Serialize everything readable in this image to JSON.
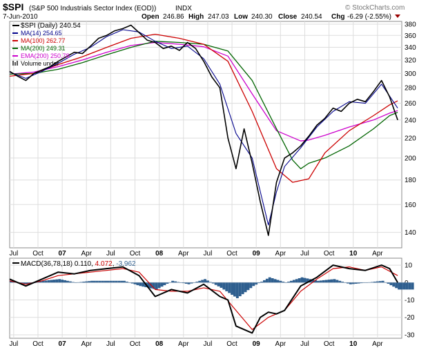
{
  "header": {
    "symbol": "$SPI",
    "name": "(S&P 500 Industrials Sector Index (EOD))",
    "exchange": "INDX",
    "watermark": "© StockCharts.com",
    "date": "7-Jun-2010",
    "open_label": "Open",
    "open": "246.86",
    "high_label": "High",
    "high": "247.03",
    "low_label": "Low",
    "low": "240.30",
    "close_label": "Close",
    "close": "240.54",
    "chg_label": "Chg",
    "chg": "-6.29 (-2.55%)"
  },
  "chart_data": [
    {
      "type": "line",
      "title": "$SPI (S&P 500 Industrials Sector Index (EOD)) INDX",
      "ylabel": "",
      "xlabel": "",
      "y_scale": "log",
      "ylim": [
        130,
        385
      ],
      "y_ticks": [
        140,
        160,
        180,
        200,
        220,
        240,
        260,
        280,
        300,
        320,
        340,
        360,
        380
      ],
      "x_tick_labels": [
        "Jul",
        "Oct",
        "07",
        "Apr",
        "Jul",
        "Oct",
        "08",
        "Apr",
        "Jul",
        "Oct",
        "09",
        "Apr",
        "Jul",
        "Oct",
        "10",
        "Apr"
      ],
      "x_tick_positions": [
        0.5,
        3.5,
        6.5,
        9.5,
        12.5,
        15.5,
        18.5,
        21.5,
        24.5,
        27.5,
        30.5,
        33.5,
        36.5,
        39.5,
        42.5,
        45.5
      ],
      "legend_position": "top-left",
      "grid": true,
      "legend": [
        {
          "label": "$SPI (Daily) 240.54",
          "color": "#000000"
        },
        {
          "label": "MA(14) 254.65",
          "color": "#00008b"
        },
        {
          "label": "MA(100) 262.77",
          "color": "#cc0000"
        },
        {
          "label": "MA(200) 249.31",
          "color": "#006400"
        },
        {
          "label": "EMA(200) 250.78",
          "color": "#cc00cc"
        },
        {
          "label": "Volume undef",
          "color": "#555555"
        }
      ],
      "series": [
        {
          "name": "$SPI (Daily)",
          "color": "#000000",
          "x": [
            0,
            1,
            2,
            3,
            4,
            5,
            6,
            7,
            8,
            9,
            10,
            11,
            12,
            13,
            14,
            15,
            16,
            17,
            18,
            19,
            20,
            21,
            22,
            23,
            24,
            25,
            26,
            27,
            28,
            29,
            30,
            31,
            32,
            33,
            34,
            35,
            36,
            37,
            38,
            39,
            40,
            41,
            42,
            43,
            44,
            45,
            46,
            47,
            48
          ],
          "y": [
            303,
            296,
            290,
            300,
            305,
            310,
            318,
            325,
            332,
            330,
            342,
            355,
            360,
            368,
            372,
            378,
            365,
            352,
            348,
            338,
            342,
            335,
            348,
            338,
            318,
            295,
            280,
            220,
            190,
            230,
            195,
            162,
            138,
            178,
            200,
            205,
            212,
            222,
            234,
            242,
            254,
            250,
            260,
            265,
            262,
            275,
            290,
            268,
            240
          ]
        },
        {
          "name": "MA(14)",
          "color": "#00008b",
          "x": [
            0,
            2,
            4,
            6,
            8,
            10,
            12,
            14,
            16,
            18,
            20,
            22,
            24,
            26,
            28,
            30,
            32,
            33,
            34,
            36,
            38,
            40,
            42,
            44,
            46,
            48
          ],
          "y": [
            302,
            293,
            303,
            315,
            329,
            340,
            358,
            370,
            366,
            350,
            338,
            342,
            322,
            285,
            225,
            200,
            145,
            170,
            192,
            210,
            232,
            250,
            262,
            260,
            285,
            254
          ]
        },
        {
          "name": "MA(100)",
          "color": "#cc0000",
          "x": [
            0,
            3,
            6,
            9,
            12,
            15,
            18,
            21,
            24,
            27,
            30,
            33,
            35,
            37,
            39,
            42,
            45,
            47,
            48
          ],
          "y": [
            296,
            300,
            313,
            325,
            340,
            355,
            362,
            355,
            345,
            318,
            250,
            190,
            178,
            181,
            205,
            228,
            245,
            258,
            263
          ]
        },
        {
          "name": "MA(200)",
          "color": "#006400",
          "x": [
            0,
            3,
            6,
            9,
            12,
            15,
            18,
            21,
            24,
            27,
            30,
            33,
            35,
            36,
            37,
            39,
            42,
            45,
            47,
            48
          ],
          "y": [
            299,
            300,
            306,
            316,
            328,
            340,
            350,
            348,
            345,
            334,
            290,
            230,
            198,
            190,
            195,
            200,
            212,
            230,
            245,
            249
          ]
        },
        {
          "name": "EMA(200)",
          "color": "#cc00cc",
          "x": [
            0,
            3,
            6,
            9,
            12,
            15,
            18,
            21,
            24,
            27,
            30,
            33,
            36,
            37,
            39,
            42,
            45,
            47,
            48
          ],
          "y": [
            299,
            302,
            310,
            320,
            332,
            343,
            348,
            345,
            341,
            326,
            272,
            228,
            217,
            218,
            223,
            232,
            240,
            248,
            251
          ]
        }
      ]
    },
    {
      "type": "line",
      "title": "MACD(36,78,18) 0.110, 4.072, -3.962",
      "ylim": [
        -32,
        14
      ],
      "y_ticks": [
        10,
        0,
        -10,
        -20,
        -30
      ],
      "x_tick_labels": [
        "Jul",
        "Oct",
        "07",
        "Apr",
        "Jul",
        "Oct",
        "08",
        "Apr",
        "Jul",
        "Oct",
        "09",
        "Apr",
        "Jul",
        "Oct",
        "10",
        "Apr"
      ],
      "legend": [
        {
          "label": "MACD(36,78,18)",
          "value": "0.110",
          "color": "#000000"
        },
        {
          "label": "",
          "value": "4.072",
          "color": "#cc0000"
        },
        {
          "label": "",
          "value": "-3.962",
          "color": "#2f5f8f"
        }
      ],
      "series": [
        {
          "name": "MACD(36,78,18)",
          "color": "#000000",
          "x": [
            0,
            2,
            4,
            6,
            8,
            10,
            12,
            14,
            16,
            18,
            20,
            22,
            24,
            26,
            27,
            28,
            30,
            31,
            32,
            33,
            34,
            36,
            38,
            40,
            42,
            44,
            46,
            47,
            48
          ],
          "y": [
            2,
            -2,
            2,
            6,
            5,
            7,
            8,
            9,
            4,
            -8,
            -4,
            -6,
            -1,
            -8,
            -10,
            -25,
            -29,
            -20,
            -17,
            -18,
            -16,
            -2,
            3,
            10,
            8,
            7,
            10,
            8,
            0
          ]
        },
        {
          "name": "",
          "color": "#cc0000",
          "x": [
            0,
            2,
            4,
            6,
            8,
            10,
            12,
            14,
            16,
            18,
            20,
            22,
            24,
            26,
            28,
            30,
            32,
            34,
            36,
            38,
            40,
            42,
            44,
            46,
            48
          ],
          "y": [
            1,
            -1,
            1,
            4,
            5,
            6,
            7,
            8,
            6,
            -4,
            -5,
            -5,
            -3,
            -5,
            -16,
            -27,
            -20,
            -16,
            -5,
            2,
            8,
            9,
            7,
            9,
            4
          ]
        },
        {
          "name": "",
          "color": "#2f5f8f",
          "kind": "histogram",
          "x": [
            0,
            2,
            4,
            6,
            8,
            10,
            12,
            14,
            16,
            18,
            20,
            22,
            24,
            26,
            28,
            30,
            32,
            34,
            36,
            38,
            40,
            42,
            44,
            46,
            48
          ],
          "y": [
            1,
            -1,
            1,
            2,
            0,
            1,
            1,
            1,
            -2,
            -4,
            1,
            -1,
            2,
            -3,
            -9,
            -2,
            3,
            0,
            3,
            1,
            2,
            -1,
            0,
            1,
            -4
          ]
        }
      ]
    }
  ]
}
